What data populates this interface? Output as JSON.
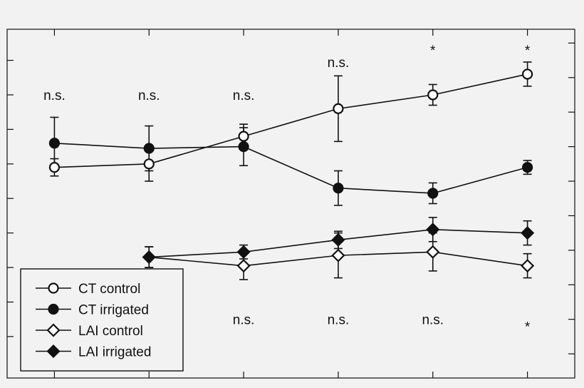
{
  "chart_data": {
    "type": "line",
    "title": "",
    "xlabel": "",
    "ylabel": "",
    "x": [
      1,
      2,
      3,
      4,
      5,
      6
    ],
    "xlim": [
      0.5,
      6.5
    ],
    "ylim": [
      -1.2,
      8.9
    ],
    "grid": false,
    "legend_position": "bottom-left",
    "series": [
      {
        "name": "CT control",
        "marker": "circle-open",
        "x": [
          1,
          2,
          3,
          4,
          5,
          6
        ],
        "values": [
          4.9,
          5.0,
          5.8,
          6.6,
          7.0,
          7.6
        ],
        "errors": [
          0.25,
          0.5,
          0.35,
          0.95,
          0.3,
          0.35
        ]
      },
      {
        "name": "CT irrigated",
        "marker": "circle-filled",
        "x": [
          1,
          2,
          3,
          4,
          5,
          6
        ],
        "values": [
          5.6,
          5.45,
          5.5,
          4.3,
          4.15,
          4.9
        ],
        "errors": [
          0.75,
          0.65,
          0.55,
          0.5,
          0.3,
          0.2
        ]
      },
      {
        "name": "LAI control",
        "marker": "diamond-open",
        "x": [
          2,
          3,
          4,
          5,
          6
        ],
        "values": [
          2.3,
          2.05,
          2.35,
          2.45,
          2.05
        ],
        "errors": [
          0.3,
          0.4,
          0.65,
          0.55,
          0.35
        ]
      },
      {
        "name": "LAI irrigated",
        "marker": "diamond-filled",
        "x": [
          2,
          3,
          4,
          5,
          6
        ],
        "values": [
          2.3,
          2.45,
          2.8,
          3.1,
          3.0
        ],
        "errors": [
          0.3,
          0.2,
          0.25,
          0.35,
          0.35
        ]
      }
    ],
    "annotations_top": [
      {
        "x": 1,
        "y": 7.0,
        "text": "n.s."
      },
      {
        "x": 2,
        "y": 7.0,
        "text": "n.s."
      },
      {
        "x": 3,
        "y": 7.0,
        "text": "n.s."
      },
      {
        "x": 4,
        "y": 7.95,
        "text": "n.s."
      },
      {
        "x": 5,
        "y": 8.3,
        "text": "*"
      },
      {
        "x": 6,
        "y": 8.3,
        "text": "*"
      }
    ],
    "annotations_bottom": [
      {
        "x": 3,
        "y": 0.5,
        "text": "n.s."
      },
      {
        "x": 4,
        "y": 0.5,
        "text": "n.s."
      },
      {
        "x": 5,
        "y": 0.5,
        "text": "n.s."
      },
      {
        "x": 6,
        "y": 0.3,
        "text": "*"
      }
    ]
  }
}
